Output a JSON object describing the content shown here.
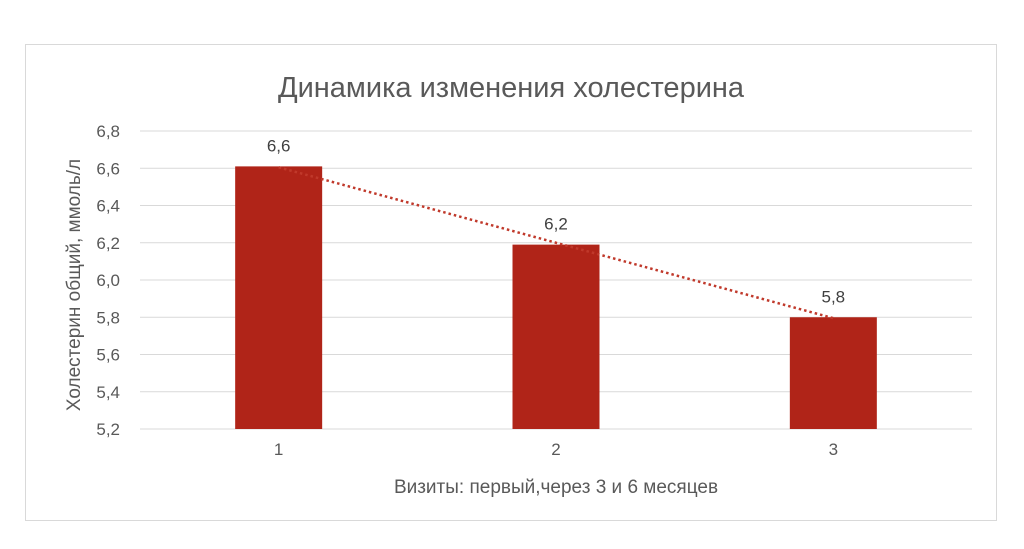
{
  "chart_data": {
    "type": "bar",
    "title": "Динамика изменения холестерина",
    "xlabel": "Визиты: первый,через 3 и 6 месяцев",
    "ylabel": "Холестерин общий, ммоль/л",
    "categories": [
      "1",
      "2",
      "3"
    ],
    "values": [
      6.61,
      6.19,
      5.8
    ],
    "data_labels": [
      "6,6",
      "6,2",
      "5,8"
    ],
    "yticks": [
      5.2,
      5.4,
      5.6,
      5.8,
      6.0,
      6.2,
      6.4,
      6.6,
      6.8
    ],
    "ytick_labels": [
      "5,2",
      "5,4",
      "5,6",
      "5,8",
      "6,0",
      "6,2",
      "6,4",
      "6,6",
      "6,8"
    ],
    "ylim": [
      5.2,
      6.8
    ],
    "grid": true,
    "legend": "none",
    "trendline": "linear",
    "bar_color": "#b02418",
    "trend_color": "#c0392b"
  }
}
